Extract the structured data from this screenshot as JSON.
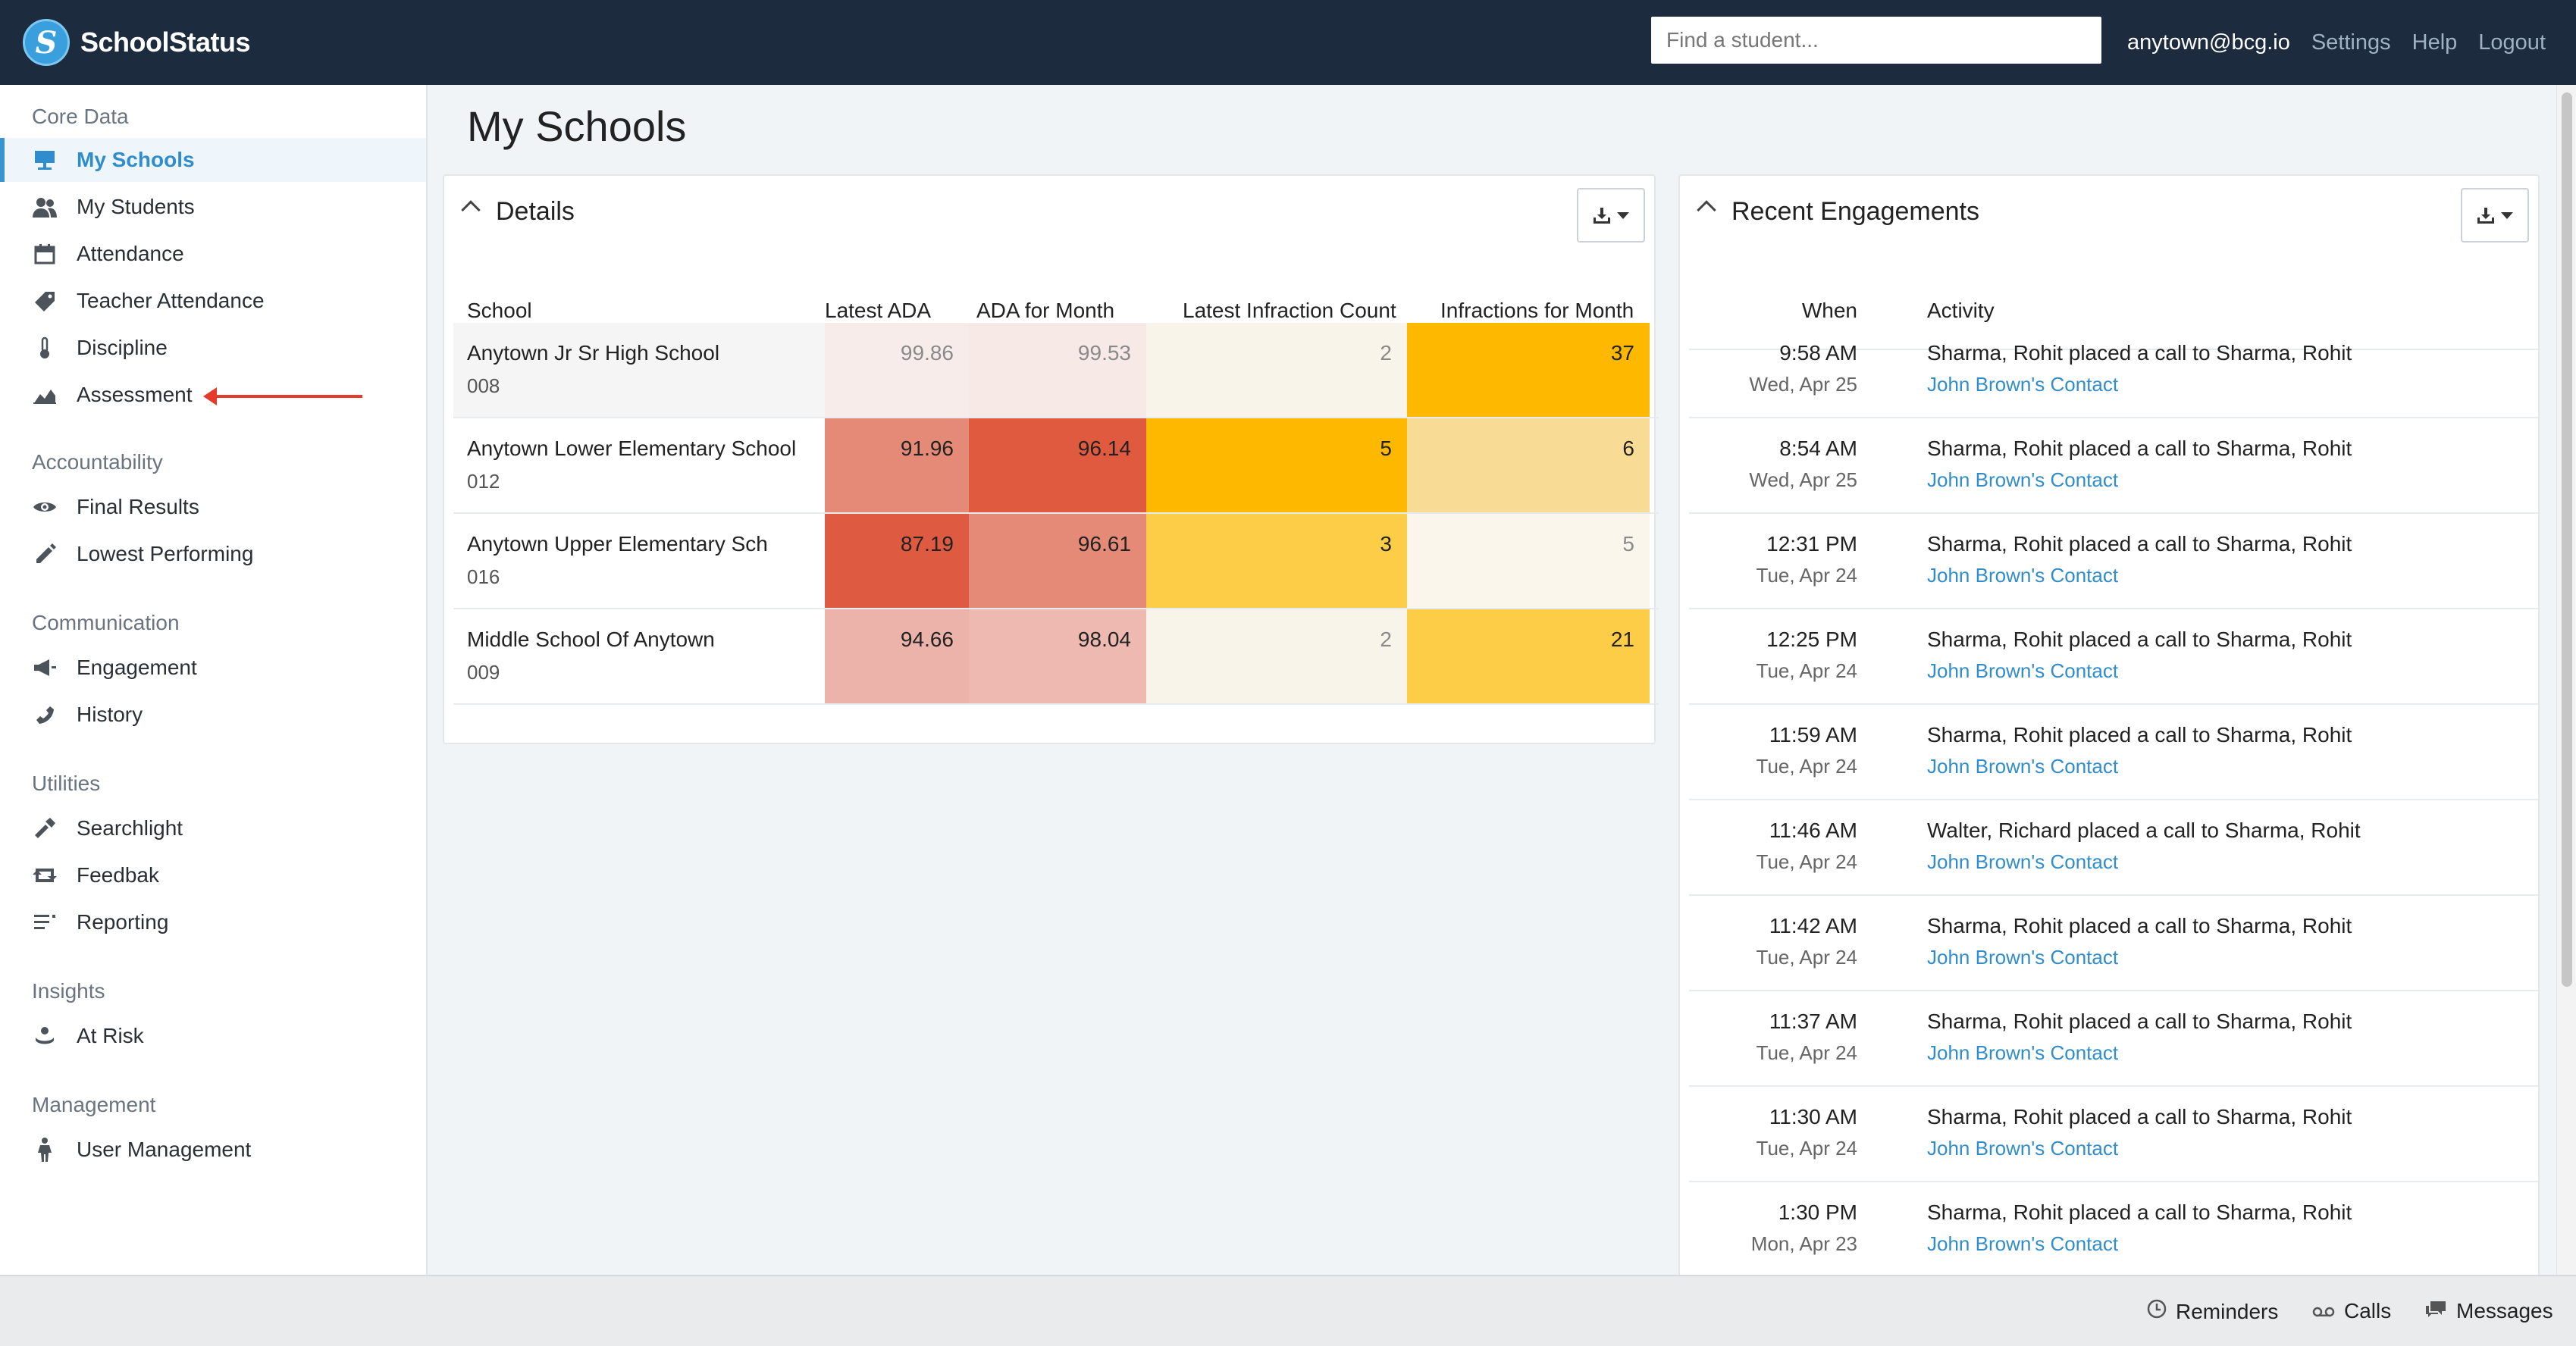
{
  "header": {
    "brand": "SchoolStatus",
    "search_placeholder": "Find a student...",
    "user": "anytown@bcg.io",
    "links": [
      "Settings",
      "Help",
      "Logout"
    ]
  },
  "sidebar": {
    "sections": [
      {
        "title": "Core Data",
        "items": [
          {
            "label": "My Schools",
            "icon": "easel-icon",
            "active": true
          },
          {
            "label": "My Students",
            "icon": "users-icon"
          },
          {
            "label": "Attendance",
            "icon": "calendar-icon"
          },
          {
            "label": "Teacher Attendance",
            "icon": "tag-icon"
          },
          {
            "label": "Discipline",
            "icon": "thermometer-icon"
          },
          {
            "label": "Assessment",
            "icon": "area-chart-icon"
          }
        ]
      },
      {
        "title": "Accountability",
        "items": [
          {
            "label": "Final Results",
            "icon": "eye-icon"
          },
          {
            "label": "Lowest Performing",
            "icon": "pencil-icon"
          }
        ]
      },
      {
        "title": "Communication",
        "items": [
          {
            "label": "Engagement",
            "icon": "megaphone-icon"
          },
          {
            "label": "History",
            "icon": "phone-icon"
          }
        ]
      },
      {
        "title": "Utilities",
        "items": [
          {
            "label": "Searchlight",
            "icon": "flashlight-icon"
          },
          {
            "label": "Feedbak",
            "icon": "retweet-icon"
          },
          {
            "label": "Reporting",
            "icon": "list-icon"
          }
        ]
      },
      {
        "title": "Insights",
        "items": [
          {
            "label": "At Risk",
            "icon": "life-ring-icon"
          }
        ]
      },
      {
        "title": "Management",
        "items": [
          {
            "label": "User Management",
            "icon": "person-icon"
          }
        ]
      }
    ]
  },
  "main": {
    "title": "My Schools",
    "details": {
      "title": "Details",
      "columns": [
        "School",
        "Latest ADA",
        "ADA for Month",
        "Latest Infraction Count",
        "Infractions for Month"
      ],
      "rows": [
        {
          "school": "Anytown Jr Sr High School",
          "code": "008",
          "latest_ada": "99.86",
          "ada_month": "99.53",
          "latest_inf": "2",
          "inf_month": "37"
        },
        {
          "school": "Anytown Lower Elementary School",
          "code": "012",
          "latest_ada": "91.96",
          "ada_month": "96.14",
          "latest_inf": "5",
          "inf_month": "6"
        },
        {
          "school": "Anytown Upper Elementary Sch",
          "code": "016",
          "latest_ada": "87.19",
          "ada_month": "96.61",
          "latest_inf": "3",
          "inf_month": "5"
        },
        {
          "school": "Middle School Of Anytown",
          "code": "009",
          "latest_ada": "94.66",
          "ada_month": "98.04",
          "latest_inf": "2",
          "inf_month": "21"
        }
      ],
      "colors": {
        "row_label_bg": [
          "#f5f5f5",
          "#ffffff",
          "#ffffff",
          "#ffffff"
        ],
        "latest_ada": [
          "#f7ecea",
          "#e58a77",
          "#de5a40",
          "#ecb3aa"
        ],
        "ada_month": [
          "#f7e9e6",
          "#e05a3f",
          "#e58a77",
          "#edb9b1"
        ],
        "latest_inf": [
          "#f8f4ea",
          "#ffb800",
          "#fdcd48",
          "#f8f4ea"
        ],
        "inf_month": [
          "#ffb800",
          "#f8db95",
          "#fbf6ec",
          "#fdcd48"
        ]
      }
    },
    "engagements": {
      "title": "Recent Engagements",
      "columns": [
        "When",
        "Activity"
      ],
      "rows": [
        {
          "time": "9:58 AM",
          "date": "Wed, Apr 25",
          "activity": "Sharma, Rohit placed a call to Sharma, Rohit",
          "contact": "John Brown's Contact"
        },
        {
          "time": "8:54 AM",
          "date": "Wed, Apr 25",
          "activity": "Sharma, Rohit placed a call to Sharma, Rohit",
          "contact": "John Brown's Contact"
        },
        {
          "time": "12:31 PM",
          "date": "Tue, Apr 24",
          "activity": "Sharma, Rohit placed a call to Sharma, Rohit",
          "contact": "John Brown's Contact"
        },
        {
          "time": "12:25 PM",
          "date": "Tue, Apr 24",
          "activity": "Sharma, Rohit placed a call to Sharma, Rohit",
          "contact": "John Brown's Contact"
        },
        {
          "time": "11:59 AM",
          "date": "Tue, Apr 24",
          "activity": "Sharma, Rohit placed a call to Sharma, Rohit",
          "contact": "John Brown's Contact"
        },
        {
          "time": "11:46 AM",
          "date": "Tue, Apr 24",
          "activity": "Walter, Richard placed a call to Sharma, Rohit",
          "contact": "John Brown's Contact"
        },
        {
          "time": "11:42 AM",
          "date": "Tue, Apr 24",
          "activity": "Sharma, Rohit placed a call to Sharma, Rohit",
          "contact": "John Brown's Contact"
        },
        {
          "time": "11:37 AM",
          "date": "Tue, Apr 24",
          "activity": "Sharma, Rohit placed a call to Sharma, Rohit",
          "contact": "John Brown's Contact"
        },
        {
          "time": "11:30 AM",
          "date": "Tue, Apr 24",
          "activity": "Sharma, Rohit placed a call to Sharma, Rohit",
          "contact": "John Brown's Contact"
        },
        {
          "time": "1:30 PM",
          "date": "Mon, Apr 23",
          "activity": "Sharma, Rohit placed a call to Sharma, Rohit",
          "contact": "John Brown's Contact"
        }
      ]
    }
  },
  "footer": {
    "items": [
      {
        "label": "Reminders",
        "icon": "clock-icon"
      },
      {
        "label": "Calls",
        "icon": "voicemail-icon"
      },
      {
        "label": "Messages",
        "icon": "chat-icon"
      }
    ]
  },
  "colors": {
    "topbar": "#1c2b3d",
    "accent": "#2f8dcd",
    "annotation_arrow": "#e53b2d"
  }
}
